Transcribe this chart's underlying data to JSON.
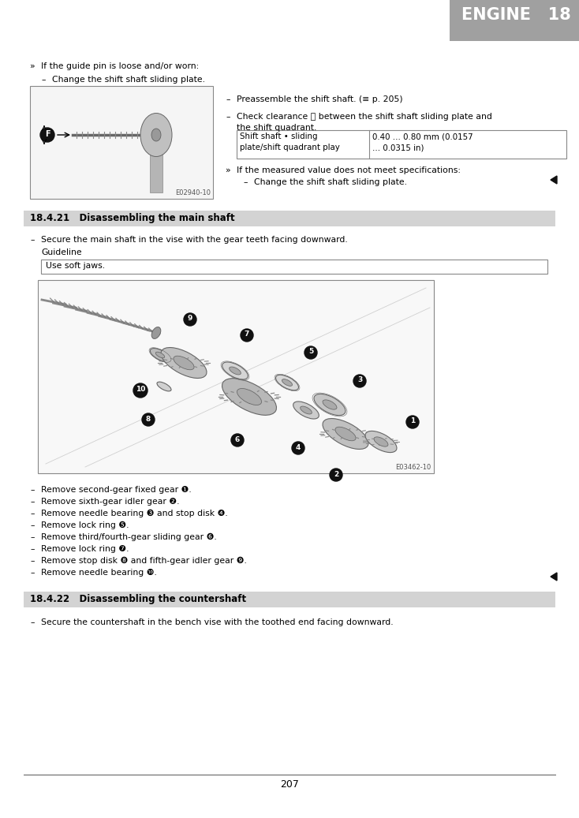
{
  "page_bg": "#ffffff",
  "header_bg": "#a0a0a0",
  "header_text": "ENGINE   18",
  "header_text_color": "#ffffff",
  "section_bg": "#d3d3d3",
  "body_text_color": "#000000",
  "page_number": "207",
  "line1_top": "If the guide pin is loose and/or worn:",
  "line1_sub": "Change the shift shaft sliding plate.",
  "img1_caption": "E02940-10",
  "img2_caption": "E03462-10",
  "right_bullet1": "Preassemble the shift shaft. (≡ p. 205)",
  "right_bullet2a": "Check clearance ⓕ between the shift shaft sliding plate and",
  "right_bullet2b": "the shift quadrant.",
  "table_row1_c1": "Shift shaft • sliding",
  "table_row1_c2": "0.40 … 0.80 mm (0.0157",
  "table_row2_c1": "plate/shift quadrant play",
  "table_row2_c2": "… 0.0315 in)",
  "spec_note": "If the measured value does not meet specifications:",
  "spec_sub": "Change the shift shaft sliding plate.",
  "section21_title": "18.4.21   Disassembling the main shaft",
  "section22_title": "18.4.22   Disassembling the countershaft",
  "main_shaft_line": "Secure the main shaft in the vise with the gear teeth facing downward.",
  "guideline_label": "Guideline",
  "guideline_text": "Use soft jaws.",
  "bullet_list": [
    "Remove second‑gear fixed gear ❶.",
    "Remove sixth‑gear idler gear ❷.",
    "Remove needle bearing ❸ and stop disk ❹.",
    "Remove lock ring ❺.",
    "Remove third/fourth‑gear sliding gear ❻.",
    "Remove lock ring ❼.",
    "Remove stop disk ❽ and fifth‑gear idler gear ❾.",
    "Remove needle bearing ❿."
  ],
  "countershaft_line": "Secure the countershaft in the bench vise with the toothed end facing downward."
}
